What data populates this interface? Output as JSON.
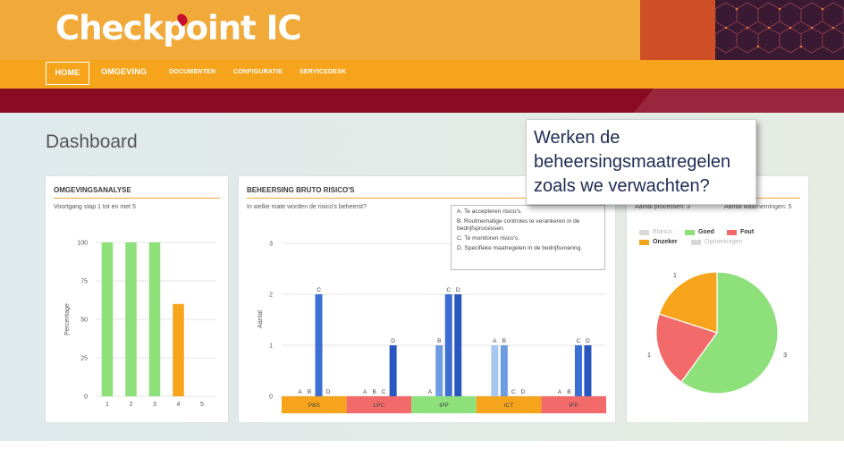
{
  "header": {
    "logo_text": "Checkpoint IC",
    "brand_color": "#f1a93a",
    "accent_color": "#8a0b24"
  },
  "nav": {
    "items": [
      {
        "label": "HOME",
        "active": true
      },
      {
        "label": "OMGEVING"
      },
      {
        "label": "DOCUMENTEN"
      },
      {
        "label": "CONFIGURATIE"
      },
      {
        "label": "SERVICEDESK"
      }
    ]
  },
  "page": {
    "title": "Dashboard"
  },
  "callout": {
    "text": "Werken de beheersingsmaatregelen zoals we verwachten?"
  },
  "omgevingsanalyse": {
    "title": "OMGEVINGSANALYSE",
    "subtitle": "Voortgang stap 1 tot en met 5",
    "chart_data": {
      "type": "bar",
      "ylabel": "Percentage",
      "ylim": [
        0,
        100
      ],
      "yticks": [
        "0",
        "25",
        "50",
        "75",
        "100"
      ],
      "categories": [
        "1",
        "2",
        "3",
        "4",
        "5"
      ],
      "values": [
        100,
        100,
        100,
        60,
        0
      ],
      "colors": [
        "#8ee07a",
        "#8ee07a",
        "#8ee07a",
        "#f7a41d",
        "#8ee07a"
      ]
    }
  },
  "beheersing": {
    "title": "BEHEERSING BRUTO RISICO'S",
    "subtitle": "In welke mate worden de risico's beheerst?",
    "legend": [
      "A. Te accepteren risico's.",
      "B. Routinematige controles te verankeren in de bedrijfsprocessen.",
      "C. Te monitoren risico's.",
      "D. Specifieke maatregelen in de bedrijfsvoering."
    ],
    "chart_data": {
      "type": "bar",
      "ylabel": "Aantal",
      "ylim": [
        0,
        3
      ],
      "yticks": [
        "0",
        "1",
        "2",
        "3"
      ],
      "categories": [
        "PBS",
        "LPC",
        "IPP",
        "ICT",
        "IFP"
      ],
      "category_colors": [
        "#f7a41d",
        "#f26a6a",
        "#8ee07a",
        "#f7a41d",
        "#f26a6a"
      ],
      "series_labels": [
        "A",
        "B",
        "C",
        "D"
      ],
      "series_colors": [
        "#a6c8f0",
        "#6f9be3",
        "#3b6fd4",
        "#2a57bf"
      ],
      "values": [
        [
          0,
          0,
          2,
          0
        ],
        [
          0,
          0,
          0,
          1
        ],
        [
          0,
          1,
          2,
          2
        ],
        [
          1,
          1,
          0,
          0
        ],
        [
          0,
          0,
          1,
          1
        ]
      ]
    }
  },
  "waarnemingen": {
    "stats_left": "Aantal processen: 3",
    "stats_right": "Aantal waarnemingen: 5",
    "legend": [
      {
        "label": "Blanco",
        "color": "#d8d8d8",
        "bold": false
      },
      {
        "label": "Goed",
        "color": "#8ee07a",
        "bold": true
      },
      {
        "label": "Fout",
        "color": "#f26a6a",
        "bold": true
      },
      {
        "label": "Onzeker",
        "color": "#f7a41d",
        "bold": true
      },
      {
        "label": "Opmerkingen",
        "color": "#d8d8d8",
        "bold": false
      }
    ],
    "chart_data": {
      "type": "pie",
      "categories": [
        "Goed",
        "Fout",
        "Onzeker"
      ],
      "values": [
        3,
        1,
        1
      ],
      "labels": [
        "3",
        "1",
        "1"
      ],
      "colors": [
        "#8ee07a",
        "#f26a6a",
        "#f7a41d"
      ]
    }
  }
}
